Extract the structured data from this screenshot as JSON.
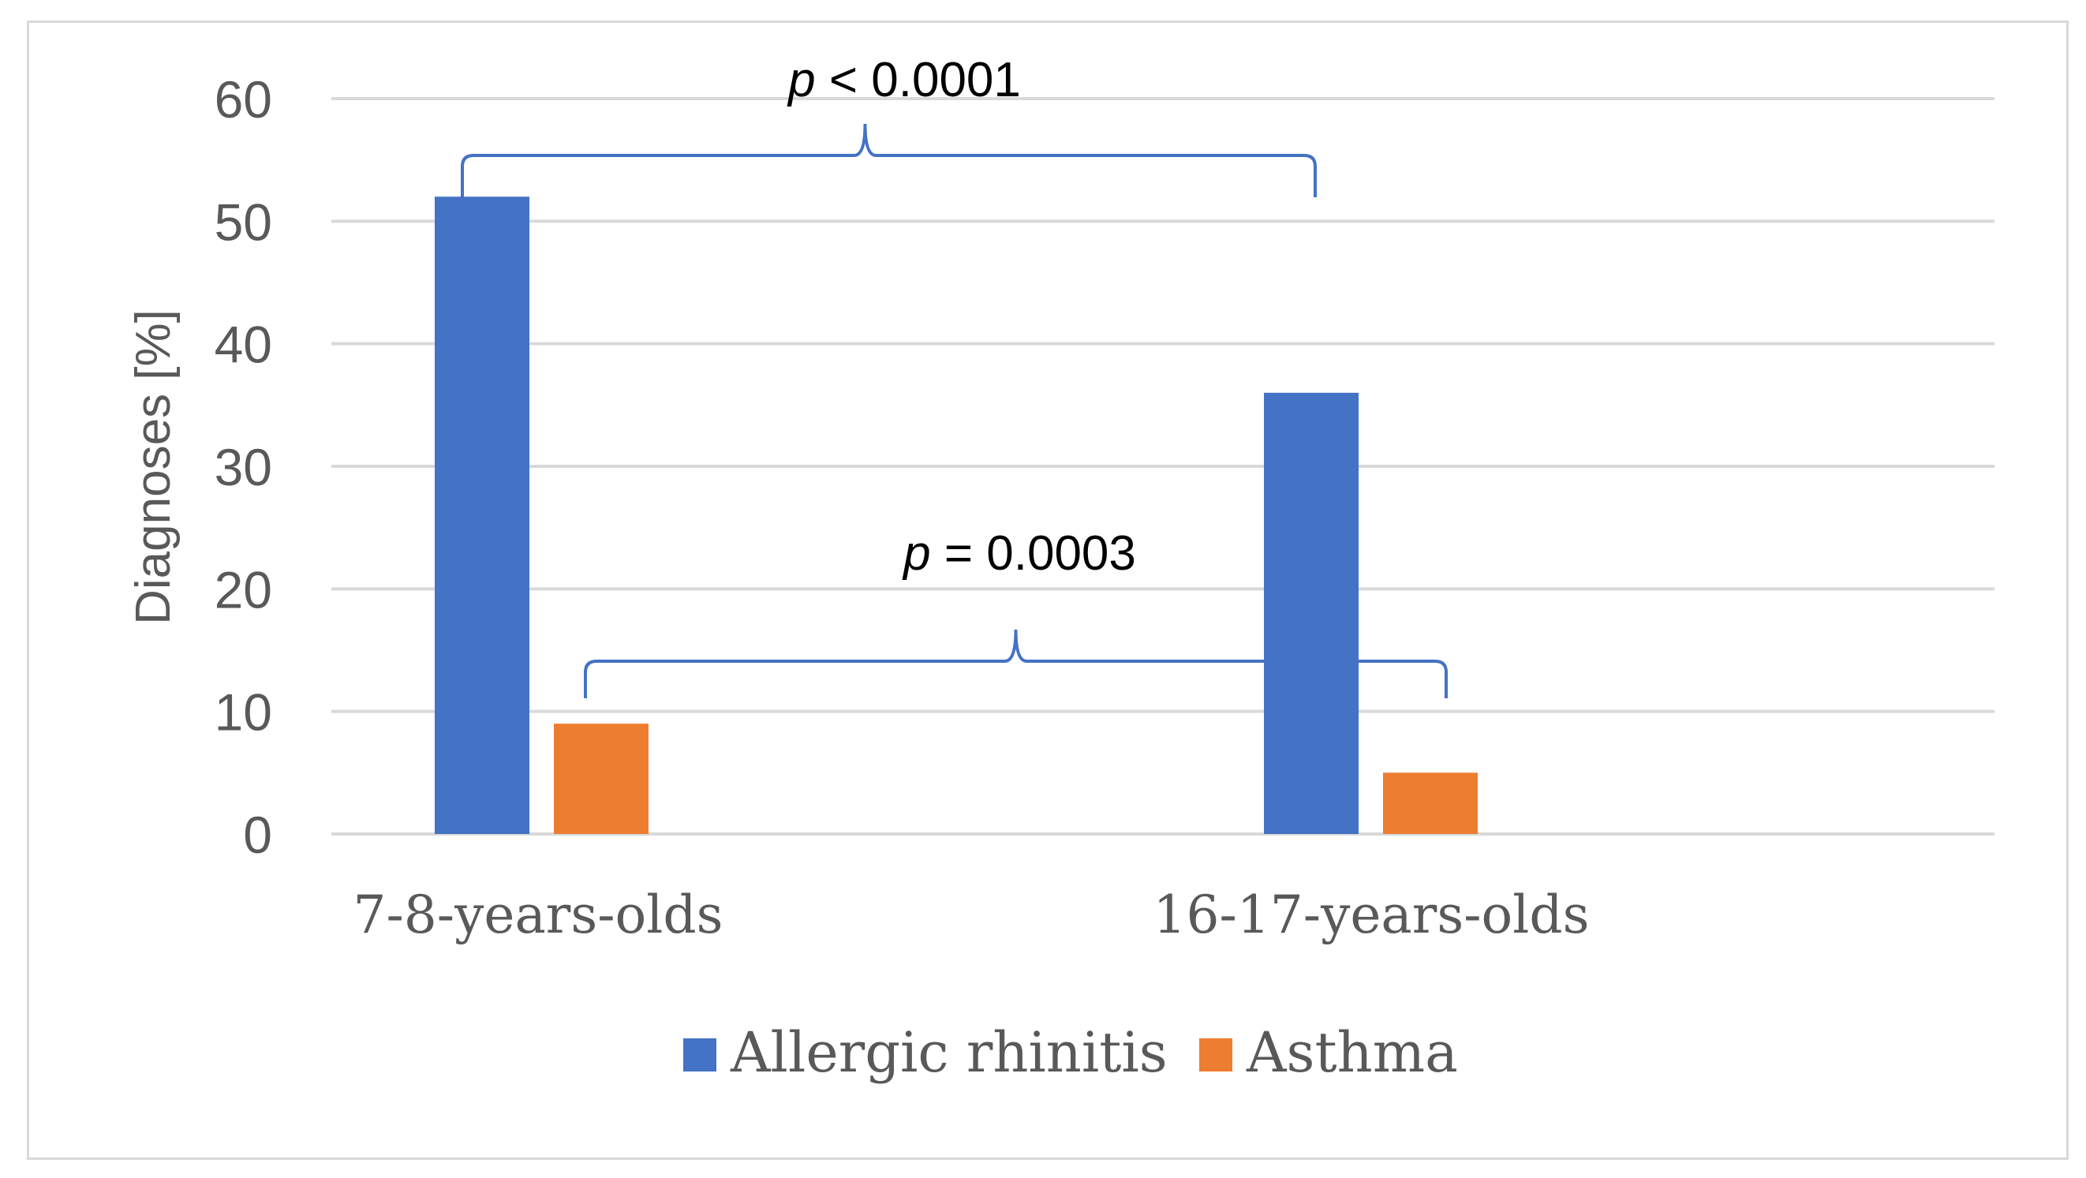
{
  "chart_data": {
    "type": "bar",
    "title": "",
    "xlabel": "",
    "ylabel": "Diagnoses [%]",
    "ylim": [
      0,
      60
    ],
    "yticks": [
      0,
      10,
      20,
      30,
      40,
      50,
      60
    ],
    "grid": true,
    "legend_position": "bottom-center",
    "categories": [
      "7-8-years-olds",
      "16-17-years-olds"
    ],
    "series": [
      {
        "name": "Allergic rhinitis",
        "color": "#4472c4",
        "values": [
          52,
          36
        ]
      },
      {
        "name": "Asthma",
        "color": "#ed7d31",
        "values": [
          9,
          5
        ]
      }
    ],
    "annotations": [
      {
        "series": "Allergic rhinitis",
        "italic": "p",
        "rest": " < 0.0001",
        "text": "p < 0.0001"
      },
      {
        "series": "Asthma",
        "italic": "p",
        "rest": " = 0.0003",
        "text": "p = 0.0003"
      }
    ],
    "bracket_color": "#4472c4"
  }
}
